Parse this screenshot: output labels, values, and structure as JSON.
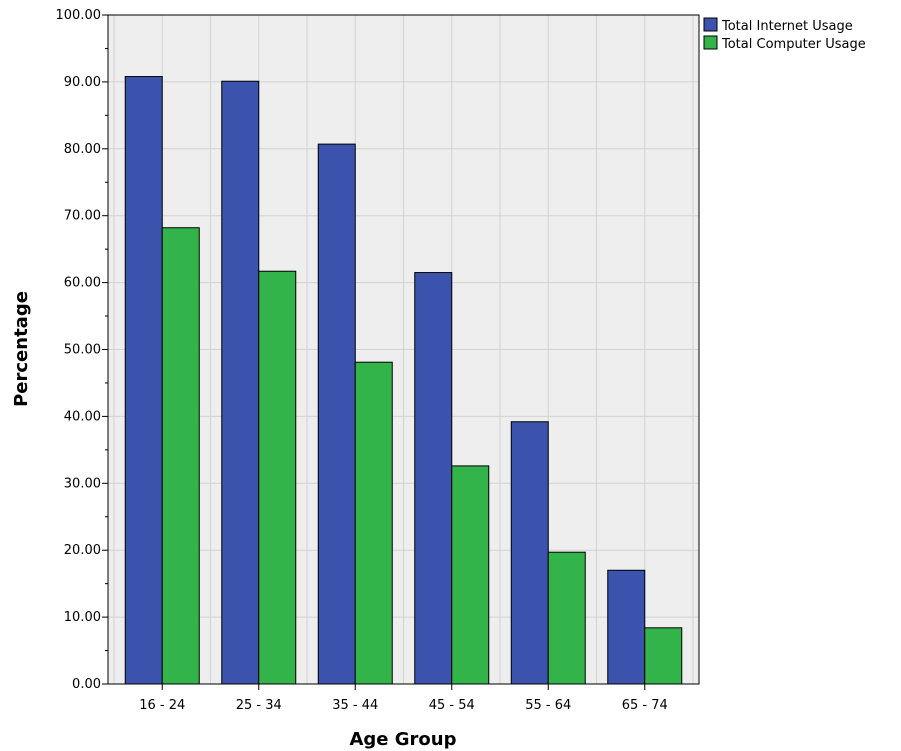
{
  "chart_data": {
    "type": "bar",
    "title": "",
    "xlabel": "Age Group",
    "ylabel": "Percentage",
    "ylim": [
      0,
      100
    ],
    "yticks": [
      "0.00",
      "10.00",
      "20.00",
      "30.00",
      "40.00",
      "50.00",
      "60.00",
      "70.00",
      "80.00",
      "90.00",
      "100.00"
    ],
    "categories": [
      "16 - 24",
      "25 - 34",
      "35 - 44",
      "45 - 54",
      "55 - 64",
      "65 - 74"
    ],
    "series": [
      {
        "name": "Total Internet Usage",
        "color": "#3b53ad",
        "values": [
          90.8,
          90.1,
          80.7,
          61.5,
          39.2,
          17.0
        ]
      },
      {
        "name": "Total Computer Usage",
        "color": "#33b44a",
        "values": [
          68.2,
          61.7,
          48.1,
          32.6,
          19.7,
          8.4
        ]
      }
    ],
    "grid": true,
    "legend_position": "top-right",
    "plot_background": "#eeeeee"
  }
}
